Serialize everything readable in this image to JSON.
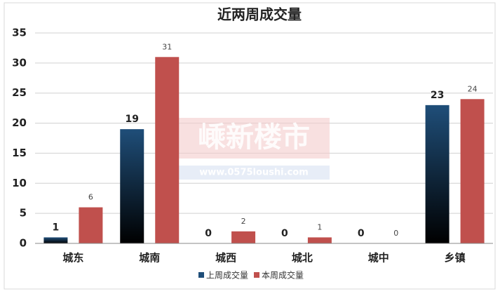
{
  "chart_data": {
    "type": "bar",
    "title": "近两周成交量",
    "categories": [
      "城东",
      "城南",
      "城西",
      "城北",
      "城中",
      "乡镇"
    ],
    "series": [
      {
        "name": "上周成交量",
        "color": "#1f4e79",
        "values": [
          1,
          19,
          0,
          0,
          0,
          23
        ]
      },
      {
        "name": "本周成交量",
        "color": "#c0504d",
        "values": [
          6,
          31,
          2,
          1,
          0,
          24
        ]
      }
    ],
    "ylim": [
      0,
      35
    ],
    "yticks": [
      0,
      5,
      10,
      15,
      20,
      25,
      30,
      35
    ],
    "grid": true,
    "legend": "bottom",
    "annotations": [
      "嵊新楼市",
      "www.0575loushi.com"
    ]
  }
}
